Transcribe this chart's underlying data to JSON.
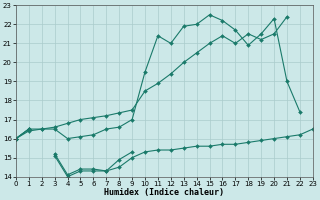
{
  "xlabel": "Humidex (Indice chaleur)",
  "x": [
    0,
    1,
    2,
    3,
    4,
    5,
    6,
    7,
    8,
    9,
    10,
    11,
    12,
    13,
    14,
    15,
    16,
    17,
    18,
    19,
    20,
    21,
    22,
    23
  ],
  "line1_y": [
    16.0,
    16.5,
    16.5,
    16.5,
    16.0,
    16.1,
    16.2,
    16.5,
    16.6,
    17.0,
    19.5,
    21.4,
    21.0,
    21.9,
    22.0,
    22.5,
    22.2,
    21.7,
    20.9,
    21.5,
    22.3,
    19.0,
    17.4,
    null
  ],
  "line2_y": [
    16.0,
    16.4,
    16.5,
    16.6,
    16.8,
    17.0,
    17.1,
    17.2,
    17.35,
    17.5,
    18.5,
    18.9,
    19.4,
    20.0,
    20.5,
    21.0,
    21.4,
    21.0,
    21.5,
    21.2,
    21.5,
    22.4,
    null,
    null
  ],
  "line3_y": [
    16.0,
    16.5,
    null,
    15.1,
    14.0,
    14.3,
    14.3,
    14.3,
    14.5,
    15.0,
    15.3,
    15.4,
    15.4,
    15.5,
    15.6,
    15.6,
    15.7,
    15.7,
    15.8,
    15.9,
    16.0,
    16.1,
    16.2,
    16.5
  ],
  "line4_y": [
    16.0,
    16.5,
    null,
    15.2,
    14.1,
    14.4,
    14.4,
    14.3,
    14.9,
    15.3,
    null,
    null,
    null,
    null,
    null,
    null,
    null,
    null,
    null,
    null,
    null,
    null,
    null,
    null
  ],
  "bg_color": "#cce8e8",
  "grid_color": "#aacccc",
  "line_color": "#1a7a6a",
  "ylim": [
    14,
    23
  ],
  "xlim": [
    0,
    23
  ],
  "yticks": [
    14,
    15,
    16,
    17,
    18,
    19,
    20,
    21,
    22,
    23
  ],
  "xticks": [
    0,
    1,
    2,
    3,
    4,
    5,
    6,
    7,
    8,
    9,
    10,
    11,
    12,
    13,
    14,
    15,
    16,
    17,
    18,
    19,
    20,
    21,
    22,
    23
  ],
  "xlabel_fontsize": 6,
  "tick_fontsize": 5
}
